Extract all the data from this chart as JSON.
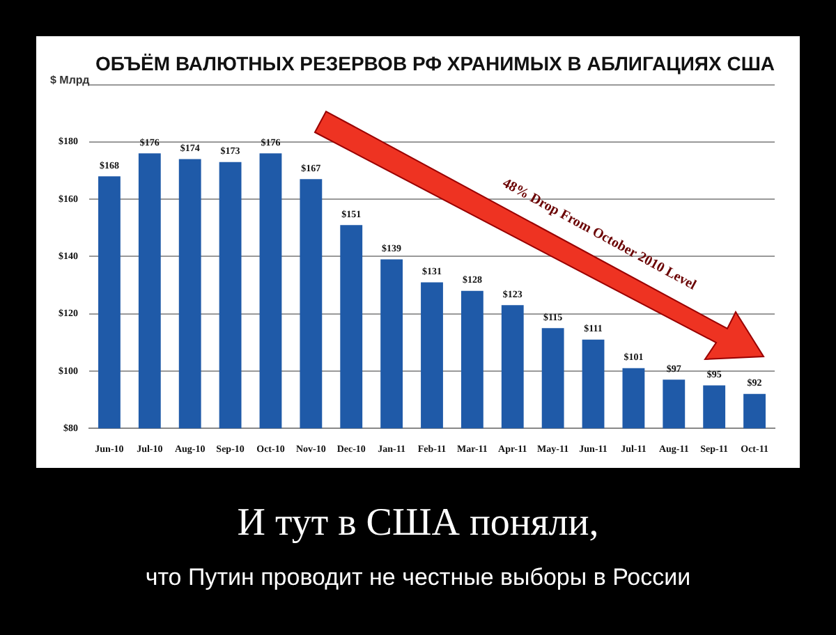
{
  "chart_data": {
    "type": "bar",
    "title": "ОБЪЁМ ВАЛЮТНЫХ РЕЗЕРВОВ РФ ХРАНИМЫХ В АБЛИГАЦИЯХ США",
    "ylabel": "$ Млрд",
    "categories": [
      "Jun-10",
      "Jul-10",
      "Aug-10",
      "Sep-10",
      "Oct-10",
      "Nov-10",
      "Dec-10",
      "Jan-11",
      "Feb-11",
      "Mar-11",
      "Apr-11",
      "May-11",
      "Jun-11",
      "Jul-11",
      "Aug-11",
      "Sep-11",
      "Oct-11"
    ],
    "values": [
      168,
      176,
      174,
      173,
      176,
      167,
      151,
      139,
      131,
      128,
      123,
      115,
      111,
      101,
      97,
      95,
      92
    ],
    "value_labels": [
      "$168",
      "$176",
      "$174",
      "$173",
      "$176",
      "$167",
      "$151",
      "$139",
      "$131",
      "$128",
      "$123",
      "$115",
      "$111",
      "$101",
      "$97",
      "$95",
      "$92"
    ],
    "color": "#1f5aa8",
    "ylim": [
      80,
      200
    ],
    "yticks": [
      {
        "value": 80,
        "label": "$80"
      },
      {
        "value": 100,
        "label": "$100"
      },
      {
        "value": 120,
        "label": "$120"
      },
      {
        "value": 140,
        "label": "$140"
      },
      {
        "value": 160,
        "label": "$160"
      },
      {
        "value": 180,
        "label": "$180"
      },
      {
        "value": 200,
        "label": null
      }
    ],
    "grid": "y",
    "annotations": [
      "48% Drop From October 2010 Level",
      "И тут в США поняли,",
      "что Путин проводит не честные выборы в России"
    ]
  }
}
